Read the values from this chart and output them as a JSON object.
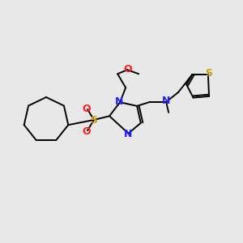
{
  "bg_color": "#e8e8e8",
  "atom_colors": {
    "N": "#2020ff",
    "O": "#ff2020",
    "S_sulfonyl": "#d4a000",
    "S_thiophene": "#c8a000",
    "C": "#000000"
  },
  "bond_color": "#000000",
  "figsize": [
    3.0,
    3.0
  ],
  "dpi": 100,
  "lw": 1.4
}
